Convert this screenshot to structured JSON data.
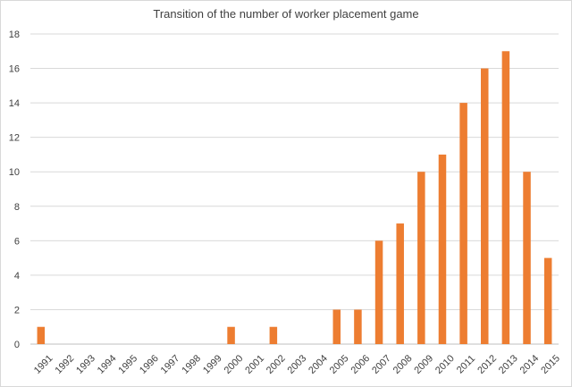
{
  "chart_data": {
    "type": "bar",
    "title": "Transition of the number of worker placement game",
    "xlabel": "",
    "ylabel": "",
    "categories": [
      "1991",
      "1992",
      "1993",
      "1994",
      "1995",
      "1996",
      "1997",
      "1998",
      "1999",
      "2000",
      "2001",
      "2002",
      "2003",
      "2004",
      "2005",
      "2006",
      "2007",
      "2008",
      "2009",
      "2010",
      "2011",
      "2012",
      "2013",
      "2014",
      "2015"
    ],
    "values": [
      1,
      0,
      0,
      0,
      0,
      0,
      0,
      0,
      0,
      1,
      0,
      1,
      0,
      0,
      2,
      2,
      6,
      7,
      10,
      11,
      14,
      16,
      17,
      10,
      5
    ],
    "ylim": [
      0,
      18
    ],
    "yticks": [
      "0",
      "2",
      "4",
      "6",
      "8",
      "10",
      "12",
      "14",
      "16",
      "18"
    ],
    "grid": "horizontal",
    "legend": "none",
    "bar_color": "#ED7D31",
    "grid_color": "#d9d9d9"
  }
}
